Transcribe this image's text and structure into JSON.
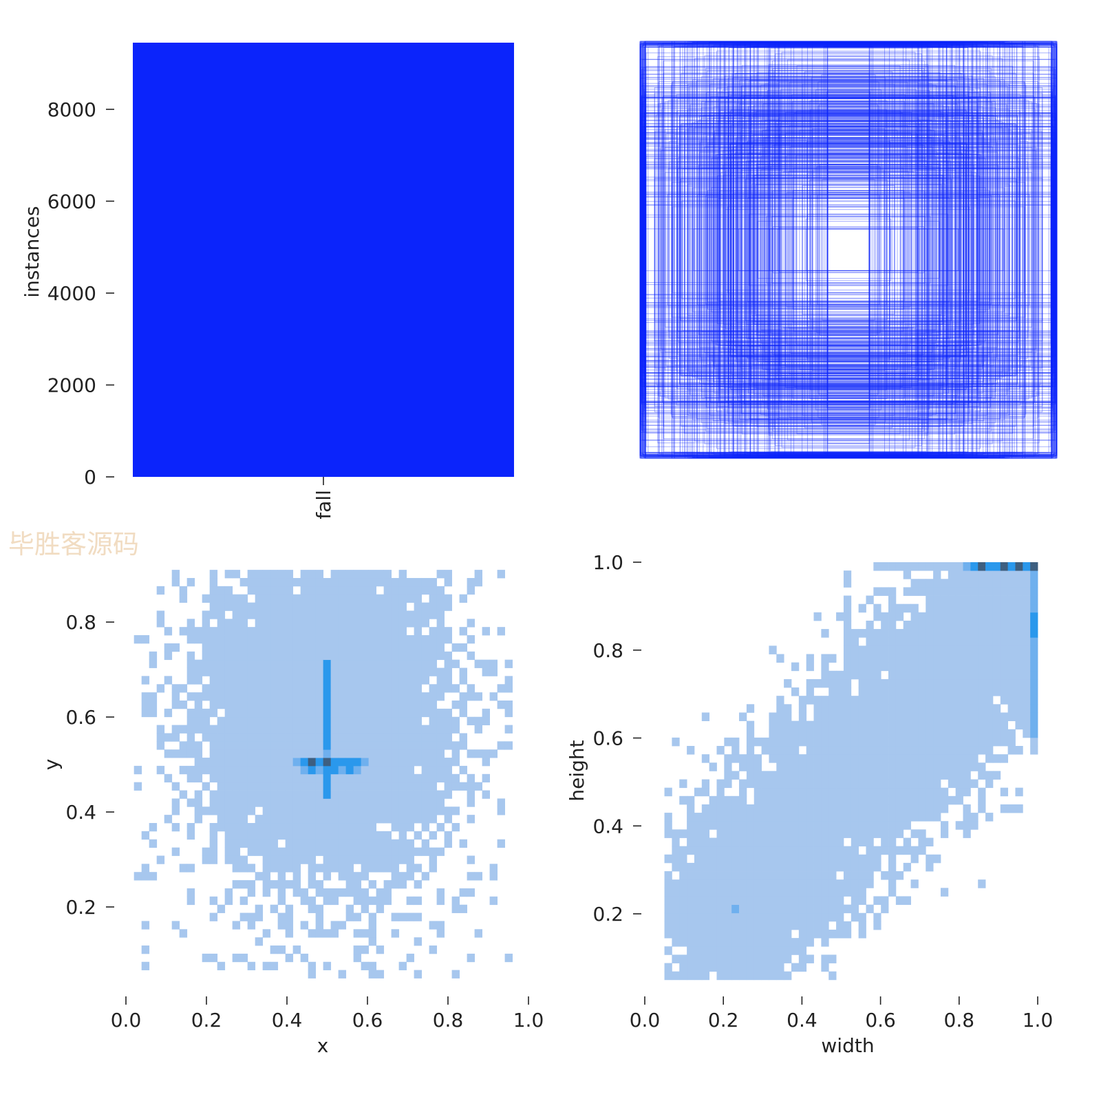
{
  "watermark": "毕胜客源码",
  "colors": {
    "bar": "#0b24fb",
    "box_stroke": "#0b24fb",
    "hist_light": "#a7c7ee",
    "hist_mid": "#6fb0ee",
    "hist_strong": "#2a98ec",
    "hist_dark": "#3e5f80",
    "tick": "#222222"
  },
  "chart_data": [
    {
      "type": "bar",
      "panel": "top-left",
      "categories": [
        "fall"
      ],
      "values": [
        9450
      ],
      "ylabel": "instances",
      "xlabel": "",
      "ylim": [
        0,
        9450
      ],
      "yticks": [
        0,
        2000,
        4000,
        6000,
        8000
      ],
      "ytick_labels": [
        "0",
        "2000",
        "4000",
        "6000",
        "8000"
      ],
      "grid": false,
      "legend": "none"
    },
    {
      "type": "scatter",
      "panel": "top-right",
      "description_kind": "overlaid centered bounding boxes",
      "axes": "hidden",
      "box_count_estimate": 600,
      "width_range": [
        0.1,
        1.0
      ],
      "height_range": [
        0.1,
        1.0
      ]
    },
    {
      "type": "heatmap",
      "panel": "bottom-left",
      "xlabel": "x",
      "ylabel": "y",
      "xlim": [
        0.0,
        1.0
      ],
      "ylim": [
        0.03,
        0.92
      ],
      "xticks": [
        0.0,
        0.2,
        0.4,
        0.6,
        0.8,
        1.0
      ],
      "xtick_labels": [
        "0.0",
        "0.2",
        "0.4",
        "0.6",
        "0.8",
        "1.0"
      ],
      "yticks": [
        0.2,
        0.4,
        0.6,
        0.8
      ],
      "ytick_labels": [
        "0.2",
        "0.4",
        "0.6",
        "0.8"
      ],
      "bins": 50,
      "center": [
        0.5,
        0.6
      ],
      "spread": [
        0.14,
        0.16
      ],
      "data_xrange": [
        0.02,
        0.96
      ],
      "data_yrange": [
        0.05,
        0.91
      ],
      "hotspots": [
        {
          "x": [
            0.49,
            0.51
          ],
          "y": [
            0.43,
            0.72
          ]
        },
        {
          "x": [
            0.43,
            0.59
          ],
          "y": [
            0.49,
            0.51
          ]
        }
      ]
    },
    {
      "type": "heatmap",
      "panel": "bottom-right",
      "xlabel": "width",
      "ylabel": "height",
      "xlim": [
        0.0,
        1.0
      ],
      "ylim": [
        0.05,
        1.0
      ],
      "xticks": [
        0.0,
        0.2,
        0.4,
        0.6,
        0.8,
        1.0
      ],
      "xtick_labels": [
        "0.0",
        "0.2",
        "0.4",
        "0.6",
        "0.8",
        "1.0"
      ],
      "yticks": [
        0.2,
        0.4,
        0.6,
        0.8,
        1.0
      ],
      "ytick_labels": [
        "0.2",
        "0.4",
        "0.6",
        "0.8",
        "1.0"
      ],
      "bins": 50,
      "data_xrange": [
        0.05,
        1.0
      ],
      "data_yrange": [
        0.05,
        1.0
      ],
      "hotspots": [
        {
          "x": [
            0.2,
            0.45
          ],
          "y": [
            0.18,
            0.42
          ]
        },
        {
          "x": [
            0.98,
            1.0
          ],
          "y": [
            0.6,
            1.0
          ]
        },
        {
          "x": [
            0.82,
            1.0
          ],
          "y": [
            0.98,
            1.0
          ]
        }
      ]
    }
  ]
}
